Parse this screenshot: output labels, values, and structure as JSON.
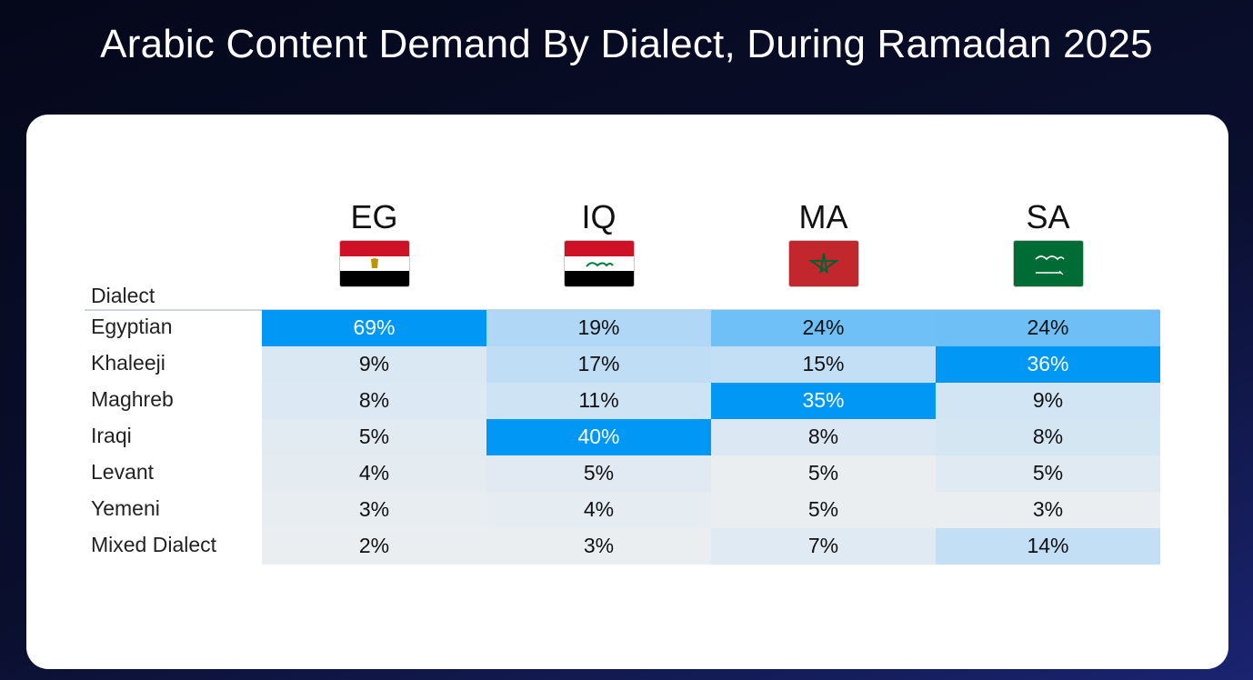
{
  "title": "Arabic Content Demand By Dialect, During Ramadan 2025",
  "colors": {
    "background": "#0a0f2e",
    "card": "#ffffff",
    "scale_high": "#0097f5",
    "scale_low": "#ebeef1"
  },
  "chart_data": {
    "type": "heatmap",
    "title": "Arabic Content Demand By Dialect, During Ramadan 2025",
    "row_header": "Dialect",
    "columns": [
      {
        "code": "EG",
        "flag_icon": "egypt-flag-icon"
      },
      {
        "code": "IQ",
        "flag_icon": "iraq-flag-icon"
      },
      {
        "code": "MA",
        "flag_icon": "morocco-flag-icon"
      },
      {
        "code": "SA",
        "flag_icon": "saudi-arabia-flag-icon"
      }
    ],
    "rows": [
      {
        "dialect": "Egyptian",
        "values": [
          69,
          19,
          24,
          24
        ],
        "labels": [
          "69%",
          "19%",
          "24%",
          "24%"
        ]
      },
      {
        "dialect": "Khaleeji",
        "values": [
          9,
          17,
          15,
          36
        ],
        "labels": [
          "9%",
          "17%",
          "15%",
          "36%"
        ]
      },
      {
        "dialect": "Maghreb",
        "values": [
          8,
          11,
          35,
          9
        ],
        "labels": [
          "8%",
          "11%",
          "35%",
          "9%"
        ]
      },
      {
        "dialect": "Iraqi",
        "values": [
          5,
          40,
          8,
          8
        ],
        "labels": [
          "5%",
          "40%",
          "8%",
          "8%"
        ]
      },
      {
        "dialect": "Levant",
        "values": [
          4,
          5,
          5,
          5
        ],
        "labels": [
          "4%",
          "5%",
          "5%",
          "5%"
        ]
      },
      {
        "dialect": "Yemeni",
        "values": [
          3,
          4,
          5,
          3
        ],
        "labels": [
          "3%",
          "4%",
          "5%",
          "3%"
        ]
      },
      {
        "dialect": "Mixed Dialect",
        "values": [
          2,
          3,
          7,
          14
        ],
        "labels": [
          "2%",
          "3%",
          "7%",
          "14%"
        ]
      }
    ],
    "unit": "%",
    "color_scale": "light blue-gray (low) to bright blue (high), per country column"
  }
}
